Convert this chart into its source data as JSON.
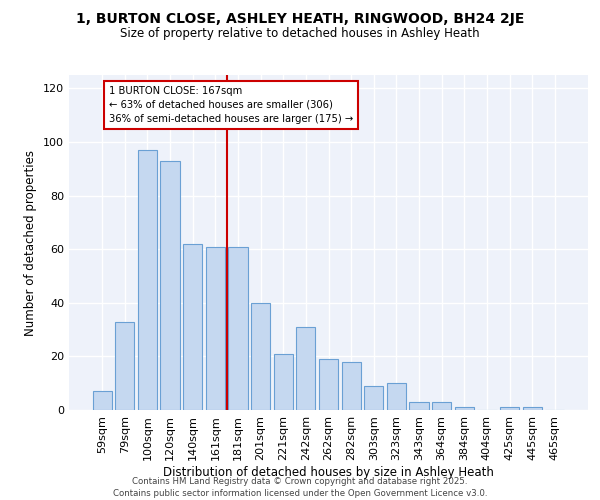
{
  "title1": "1, BURTON CLOSE, ASHLEY HEATH, RINGWOOD, BH24 2JE",
  "title2": "Size of property relative to detached houses in Ashley Heath",
  "xlabel": "Distribution of detached houses by size in Ashley Heath",
  "ylabel": "Number of detached properties",
  "categories": [
    "59sqm",
    "79sqm",
    "100sqm",
    "120sqm",
    "140sqm",
    "161sqm",
    "181sqm",
    "201sqm",
    "221sqm",
    "242sqm",
    "262sqm",
    "282sqm",
    "303sqm",
    "323sqm",
    "343sqm",
    "364sqm",
    "384sqm",
    "404sqm",
    "425sqm",
    "445sqm",
    "465sqm"
  ],
  "values": [
    7,
    33,
    97,
    93,
    62,
    61,
    61,
    40,
    21,
    31,
    19,
    18,
    9,
    10,
    3,
    3,
    1,
    0,
    1,
    1,
    0
  ],
  "bar_color": "#c5d8f0",
  "bar_edge_color": "#6aa0d4",
  "vline_x_index": 5,
  "vline_color": "#cc0000",
  "annotation_title": "1 BURTON CLOSE: 167sqm",
  "annotation_line1": "← 63% of detached houses are smaller (306)",
  "annotation_line2": "36% of semi-detached houses are larger (175) →",
  "annotation_box_color": "#cc0000",
  "ylim": [
    0,
    125
  ],
  "yticks": [
    0,
    20,
    40,
    60,
    80,
    100,
    120
  ],
  "background_color": "#eef2fa",
  "grid_color": "#ffffff",
  "footer1": "Contains HM Land Registry data © Crown copyright and database right 2025.",
  "footer2": "Contains public sector information licensed under the Open Government Licence v3.0."
}
